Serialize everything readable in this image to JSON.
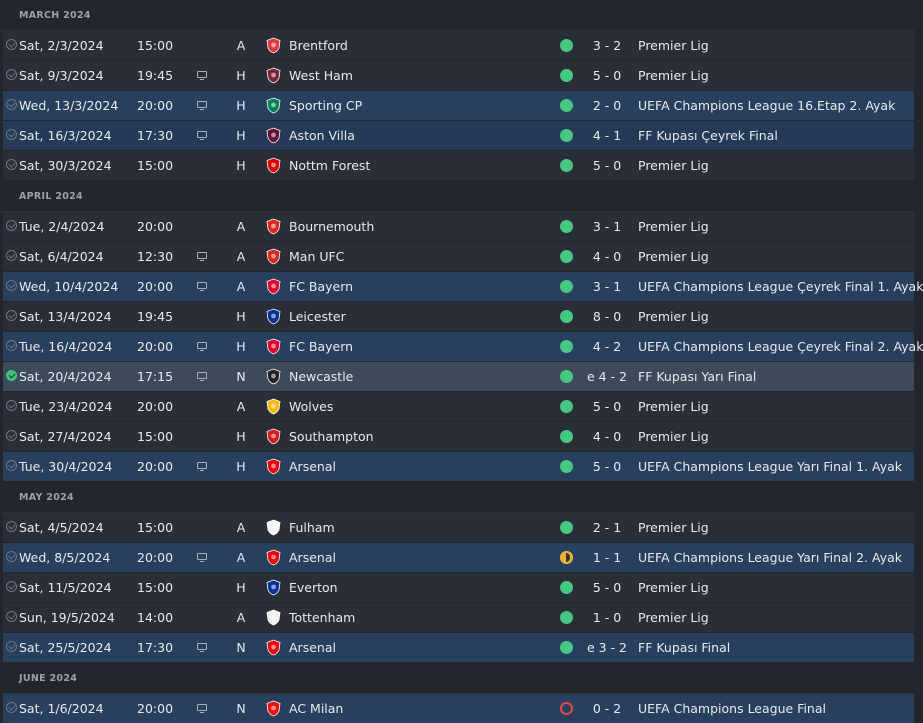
{
  "months": [
    {
      "label": "MARCH 2024",
      "matches": [
        {
          "date": "Sat, 2/3/2024",
          "time": "15:00",
          "tv": false,
          "venue": "A",
          "opponent": "Brentford",
          "crest": "brentford",
          "result": "win",
          "score": "3 - 2",
          "competition": "Premier Lig",
          "type": "league"
        },
        {
          "date": "Sat, 9/3/2024",
          "time": "19:45",
          "tv": true,
          "venue": "H",
          "opponent": "West Ham",
          "crest": "westham",
          "result": "win",
          "score": "5 - 0",
          "competition": "Premier Lig",
          "type": "league"
        },
        {
          "date": "Wed, 13/3/2024",
          "time": "20:00",
          "tv": true,
          "venue": "H",
          "opponent": "Sporting CP",
          "crest": "sporting",
          "result": "win",
          "score": "2 - 0",
          "competition": "UEFA Champions League 16.Etap 2. Ayak",
          "type": "cup"
        },
        {
          "date": "Sat, 16/3/2024",
          "time": "17:30",
          "tv": true,
          "venue": "H",
          "opponent": "Aston Villa",
          "crest": "astonvilla",
          "result": "win",
          "score": "4 - 1",
          "competition": "FF Kupası Çeyrek Final",
          "type": "cup-alt"
        },
        {
          "date": "Sat, 30/3/2024",
          "time": "15:00",
          "tv": false,
          "venue": "H",
          "opponent": "Nottm Forest",
          "crest": "forest",
          "result": "win",
          "score": "5 - 0",
          "competition": "Premier Lig",
          "type": "league"
        }
      ]
    },
    {
      "label": "APRIL 2024",
      "matches": [
        {
          "date": "Tue, 2/4/2024",
          "time": "20:00",
          "tv": false,
          "venue": "A",
          "opponent": "Bournemouth",
          "crest": "bournemouth",
          "result": "win",
          "score": "3 - 1",
          "competition": "Premier Lig",
          "type": "league"
        },
        {
          "date": "Sat, 6/4/2024",
          "time": "12:30",
          "tv": true,
          "venue": "A",
          "opponent": "Man UFC",
          "crest": "manutd",
          "result": "win",
          "score": "4 - 0",
          "competition": "Premier Lig",
          "type": "league"
        },
        {
          "date": "Wed, 10/4/2024",
          "time": "20:00",
          "tv": true,
          "venue": "A",
          "opponent": "FC Bayern",
          "crest": "bayern",
          "result": "win",
          "score": "3 - 1",
          "competition": "UEFA Champions League Çeyrek Final 1. Ayak",
          "type": "cup"
        },
        {
          "date": "Sat, 13/4/2024",
          "time": "19:45",
          "tv": false,
          "venue": "H",
          "opponent": "Leicester",
          "crest": "leicester",
          "result": "win",
          "score": "8 - 0",
          "competition": "Premier Lig",
          "type": "league"
        },
        {
          "date": "Tue, 16/4/2024",
          "time": "20:00",
          "tv": true,
          "venue": "H",
          "opponent": "FC Bayern",
          "crest": "bayern",
          "result": "win",
          "score": "4 - 2",
          "competition": "UEFA Champions League Çeyrek Final 2. Ayak",
          "type": "cup"
        },
        {
          "date": "Sat, 20/4/2024",
          "time": "17:15",
          "tv": true,
          "venue": "N",
          "opponent": "Newcastle",
          "crest": "newcastle",
          "result": "win",
          "score": "e 4 - 2",
          "competition": "FF Kupası Yarı Final",
          "type": "selected"
        },
        {
          "date": "Tue, 23/4/2024",
          "time": "20:00",
          "tv": false,
          "venue": "A",
          "opponent": "Wolves",
          "crest": "wolves",
          "result": "win",
          "score": "5 - 0",
          "competition": "Premier Lig",
          "type": "league"
        },
        {
          "date": "Sat, 27/4/2024",
          "time": "15:00",
          "tv": false,
          "venue": "H",
          "opponent": "Southampton",
          "crest": "southampton",
          "result": "win",
          "score": "4 - 0",
          "competition": "Premier Lig",
          "type": "league"
        },
        {
          "date": "Tue, 30/4/2024",
          "time": "20:00",
          "tv": true,
          "venue": "H",
          "opponent": "Arsenal",
          "crest": "arsenal",
          "result": "win",
          "score": "5 - 0",
          "competition": "UEFA Champions League Yarı Final 1. Ayak",
          "type": "cup"
        }
      ]
    },
    {
      "label": "MAY 2024",
      "matches": [
        {
          "date": "Sat, 4/5/2024",
          "time": "15:00",
          "tv": false,
          "venue": "A",
          "opponent": "Fulham",
          "crest": "fulham",
          "result": "win",
          "score": "2 - 1",
          "competition": "Premier Lig",
          "type": "league"
        },
        {
          "date": "Wed, 8/5/2024",
          "time": "20:00",
          "tv": true,
          "venue": "A",
          "opponent": "Arsenal",
          "crest": "arsenal",
          "result": "draw",
          "score": "1 - 1",
          "competition": "UEFA Champions League Yarı Final 2. Ayak",
          "type": "cup"
        },
        {
          "date": "Sat, 11/5/2024",
          "time": "15:00",
          "tv": false,
          "venue": "H",
          "opponent": "Everton",
          "crest": "everton",
          "result": "win",
          "score": "5 - 0",
          "competition": "Premier Lig",
          "type": "league"
        },
        {
          "date": "Sun, 19/5/2024",
          "time": "14:00",
          "tv": false,
          "venue": "A",
          "opponent": "Tottenham",
          "crest": "tottenham",
          "result": "win",
          "score": "1 - 0",
          "competition": "Premier Lig",
          "type": "league"
        },
        {
          "date": "Sat, 25/5/2024",
          "time": "17:30",
          "tv": true,
          "venue": "N",
          "opponent": "Arsenal",
          "crest": "arsenal",
          "result": "win",
          "score": "e 3 - 2",
          "competition": "FF Kupası Final",
          "type": "cup"
        }
      ]
    },
    {
      "label": "JUNE 2024",
      "matches": [
        {
          "date": "Sat, 1/6/2024",
          "time": "20:00",
          "tv": true,
          "venue": "N",
          "opponent": "AC Milan",
          "crest": "acmilan",
          "result": "loss",
          "score": "0 - 2",
          "competition": "UEFA Champions League Final",
          "type": "cup"
        }
      ]
    }
  ],
  "crest_colors": {
    "brentford": "#e03a3e",
    "westham": "#7a263a",
    "sporting": "#008057",
    "astonvilla": "#670e36",
    "forest": "#dd0000",
    "bournemouth": "#da291c",
    "manutd": "#da291c",
    "bayern": "#dc052d",
    "leicester": "#003090",
    "newcastle": "#241f20",
    "wolves": "#fdb913",
    "southampton": "#d71920",
    "arsenal": "#ef0107",
    "fulham": "#f5f5f5",
    "everton": "#003399",
    "tottenham": "#f2f2f2",
    "acmilan": "#fb090b"
  }
}
